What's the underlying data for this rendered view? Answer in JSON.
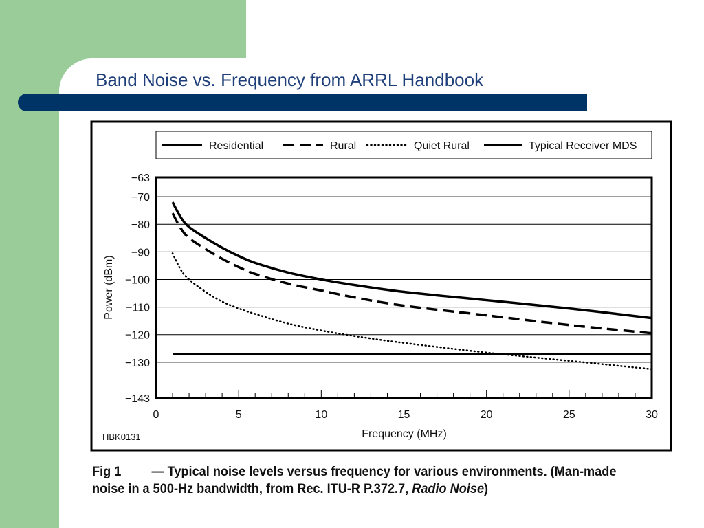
{
  "slide": {
    "title": "Band Noise vs. Frequency from ARRL Handbook"
  },
  "colors": {
    "green": "#99cc99",
    "navy": "#003366",
    "title_text": "#1f3f7a"
  },
  "figure": {
    "id_label": "HBK0131",
    "caption_fig": "Fig 1",
    "caption_text": "— Typical noise levels versus frequency for various environments. (Man-made noise in a 500-Hz bandwidth, from Rec. ITU-R P.372.7, ",
    "caption_italic": "Radio Noise",
    "caption_end": ")"
  },
  "chart_data": {
    "type": "line",
    "title": "",
    "xlabel": "Frequency (MHz)",
    "ylabel": "Power (dBm)",
    "xlim": [
      0,
      30
    ],
    "ylim": [
      -143,
      -63
    ],
    "x_ticks": [
      0,
      5,
      10,
      15,
      20,
      25,
      30
    ],
    "y_ticks": [
      -63,
      -70,
      -80,
      -90,
      -100,
      -110,
      -120,
      -130,
      -143
    ],
    "grid": true,
    "legend_position": "top",
    "series": [
      {
        "name": "Residential",
        "style": "solid-thick",
        "x": [
          1,
          1.5,
          2,
          3,
          4,
          5,
          6,
          8,
          10,
          12,
          15,
          20,
          25,
          30
        ],
        "y": [
          -72,
          -77.5,
          -81,
          -85,
          -88.5,
          -91.5,
          -94,
          -97.5,
          -100,
          -102,
          -104.5,
          -107.5,
          -110.5,
          -114
        ]
      },
      {
        "name": "Rural",
        "style": "dashed",
        "x": [
          1,
          1.5,
          2,
          3,
          4,
          5,
          6,
          8,
          10,
          12,
          15,
          20,
          25,
          30
        ],
        "y": [
          -76,
          -81.5,
          -85,
          -89,
          -92.5,
          -95.5,
          -98,
          -101.5,
          -104,
          -106.5,
          -109.5,
          -113,
          -116.5,
          -119.5
        ]
      },
      {
        "name": "Quiet Rural",
        "style": "dotted",
        "x": [
          1,
          1.5,
          2,
          3,
          4,
          5,
          6,
          8,
          10,
          12,
          15,
          20,
          25,
          30
        ],
        "y": [
          -90.5,
          -96.5,
          -100,
          -104.5,
          -108,
          -110.5,
          -112.5,
          -116,
          -118.5,
          -120.5,
          -123,
          -126.5,
          -129.5,
          -132.5
        ]
      },
      {
        "name": "Typical Receiver MDS",
        "style": "solid",
        "x": [
          1,
          30
        ],
        "y": [
          -127,
          -127
        ]
      }
    ]
  }
}
